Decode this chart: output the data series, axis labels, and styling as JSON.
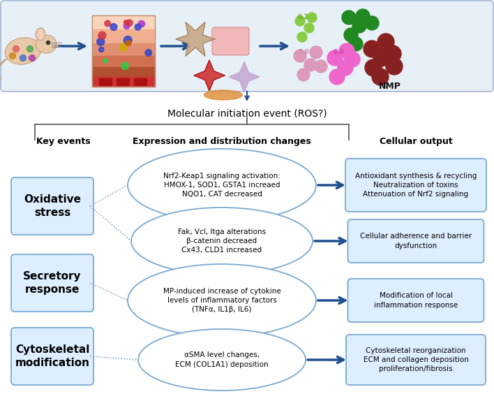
{
  "top_panel_bg": "#e8f0f7",
  "top_panel_border": "#aabdd4",
  "arrow_color": "#1f4e8c",
  "dotted_line_color": "#7799bb",
  "mol_event_text": "Molecular initiation event (ROS?)",
  "col_headers": [
    "Key events",
    "Expression and distribution changes",
    "Cellular output"
  ],
  "key_events": [
    {
      "label": "Oxidative\nstress"
    },
    {
      "label": "Secretory\nresponse"
    },
    {
      "label": "Cytoskeletal\nmodification"
    }
  ],
  "ellipses": [
    {
      "text": "Nrf2-Keap1 signaling activation:\nHMOX-1, SOD1, GSTA1 increaed\nNQO1, CAT decreased"
    },
    {
      "text": "Fak, Vcl, Itga alterations\nβ-catenin decreaed\nCx43, CLD1 increased"
    },
    {
      "text": "MP-induced increase of cytokine\nlevels of inflammatory factors\n(TNFα, IL1β, IL6)"
    },
    {
      "text": "αSMA level changes,\nECM (COL1A1) deposition"
    }
  ],
  "output_boxes": [
    {
      "text": "Antioxidant synthesis & recycling\nNeutralization of toxins\nAttenuation of Nrf2 signaling"
    },
    {
      "text": "Cellular adherence and barrier\ndysfunction"
    },
    {
      "text": "Modification of local\ninflammation response"
    },
    {
      "text": "Cytoskeletal reorganization\nECM and collagen deposition\nproliferation/fibrosis"
    }
  ],
  "box_fill": "#ddeeff",
  "box_edge": "#7aaad0",
  "ellipse_fill": "#ffffff",
  "ellipse_edge": "#7aaad0",
  "key_event_fill": "#ddeeff",
  "key_event_edge": "#7aaad0"
}
